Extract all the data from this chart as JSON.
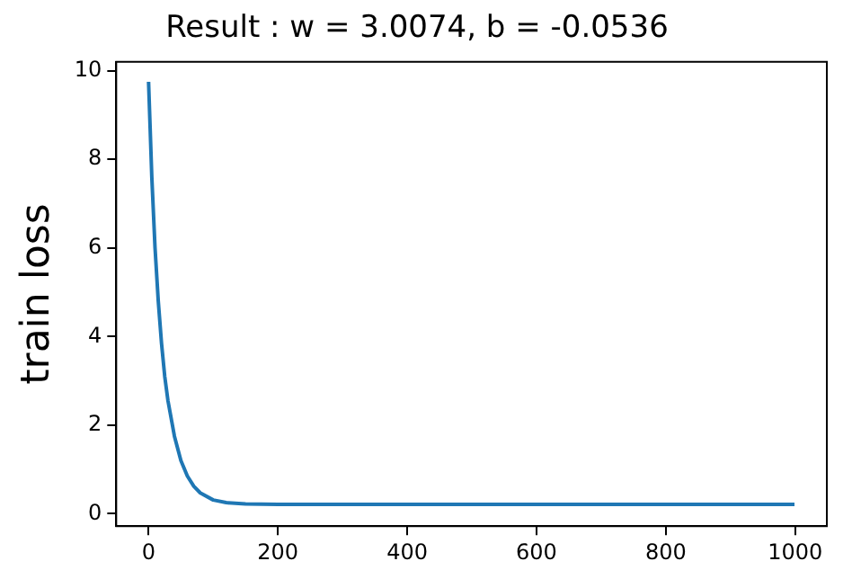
{
  "chart_data": {
    "type": "line",
    "title": "Result : w = 3.0074, b = -0.0536",
    "ylabel": "train loss",
    "x": [
      0,
      5,
      10,
      15,
      20,
      25,
      30,
      40,
      50,
      60,
      70,
      80,
      100,
      120,
      150,
      200,
      400,
      600,
      800,
      999
    ],
    "series": [
      {
        "color": "#1f77b4",
        "values": [
          9.75,
          7.6,
          6.0,
          4.8,
          3.85,
          3.1,
          2.55,
          1.75,
          1.2,
          0.85,
          0.62,
          0.47,
          0.31,
          0.25,
          0.22,
          0.21,
          0.21,
          0.21,
          0.21,
          0.21
        ]
      }
    ],
    "xlim": [
      -50,
      1049
    ],
    "ylim": [
      -0.28,
      10.2
    ],
    "xticks": [
      0,
      200,
      400,
      600,
      800,
      1000
    ],
    "yticks": [
      0,
      2,
      4,
      6,
      8,
      10
    ],
    "grid": false,
    "legend": false,
    "marker": "none",
    "line_style": "solid"
  }
}
